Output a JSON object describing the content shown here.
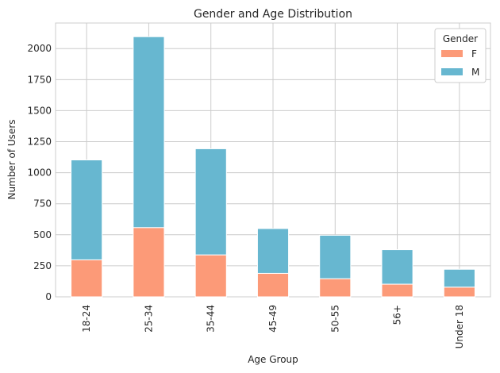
{
  "chart_data": {
    "type": "bar",
    "stacked": true,
    "title": "Gender and Age Distribution",
    "xlabel": "Age Group",
    "ylabel": "Number of Users",
    "categories": [
      "18-24",
      "25-34",
      "35-44",
      "45-49",
      "50-55",
      "56+",
      "Under 18"
    ],
    "series": [
      {
        "name": "F",
        "color": "#fc9a78",
        "values": [
          298,
          558,
          338,
          189,
          146,
          102,
          78
        ]
      },
      {
        "name": "M",
        "color": "#67b7d0",
        "values": [
          805,
          1538,
          855,
          361,
          350,
          278,
          144
        ]
      }
    ],
    "ylim": [
      0,
      2206
    ],
    "yticks": [
      0,
      250,
      500,
      750,
      1000,
      1250,
      1500,
      1750,
      2000
    ],
    "grid": true,
    "legend": {
      "title": "Gender",
      "placement": "top-right"
    }
  }
}
